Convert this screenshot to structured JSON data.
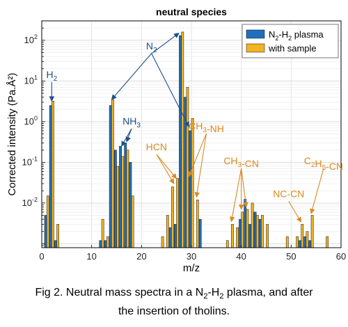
{
  "chart_data": {
    "type": "bar",
    "title": "neutral species",
    "xlabel": "m/z",
    "ylabel": "Corrected intensity (Pa.Å²)",
    "xlim": [
      0,
      60
    ],
    "ylim": [
      0.0008,
      300
    ],
    "yscale": "log",
    "grid": true,
    "x_ticks": [
      "0",
      "10",
      "20",
      "30",
      "40",
      "50",
      "60"
    ],
    "y_ticks": [
      {
        "base": "10",
        "exp": "-2",
        "value": 0.01
      },
      {
        "base": "10",
        "exp": "-1",
        "value": 0.1
      },
      {
        "base": "10",
        "exp": "0",
        "value": 1
      },
      {
        "base": "10",
        "exp": "1",
        "value": 10
      },
      {
        "base": "10",
        "exp": "2",
        "value": 100
      }
    ],
    "legend_position": "top-right",
    "series": [
      {
        "name": "N2-H2 plasma",
        "legend": {
          "main": "N",
          "sub1": "2",
          "mid": "-H",
          "sub2": "2",
          "tail": " plasma"
        },
        "color": "#1f6fbf",
        "x": [
          1,
          2,
          3,
          12,
          13,
          14,
          15,
          16,
          17,
          18,
          26,
          27,
          28,
          29,
          30,
          32,
          40,
          41,
          42,
          43,
          44,
          52,
          53,
          54
        ],
        "values": [
          0.005,
          2.5,
          0.0012,
          0.0012,
          0.0012,
          2.5,
          0.2,
          0.25,
          0.3,
          0.1,
          0.0025,
          0.003,
          130,
          4,
          0.6,
          0.004,
          0.004,
          0.0125,
          0.003,
          0.006,
          0.004,
          0.0012,
          0.0015,
          0.0012
        ]
      },
      {
        "name": "with sample",
        "color": "#f0b323",
        "x": [
          1,
          2,
          3,
          12,
          13,
          14,
          15,
          16,
          17,
          18,
          24,
          25,
          26,
          27,
          28,
          29,
          30,
          31,
          37,
          38,
          39,
          40,
          41,
          42,
          43,
          44,
          45,
          49,
          51,
          52,
          53,
          54,
          57
        ],
        "values": [
          0.015,
          3.2,
          0.003,
          0.004,
          0.0015,
          3.5,
          0.08,
          0.14,
          0.2,
          0.015,
          0.0015,
          0.005,
          0.025,
          0.04,
          160,
          7,
          1.2,
          0.012,
          0.0012,
          0.003,
          0.0025,
          0.006,
          0.007,
          0.01,
          0.005,
          0.005,
          0.003,
          0.0015,
          0.0015,
          0.003,
          0.002,
          0.005,
          0.0015
        ]
      }
    ],
    "annotations": [
      {
        "label": {
          "main": "N",
          "sub": "2",
          "tail": ""
        },
        "color": "#1a4f8c",
        "anchor_x": 22,
        "anchor_y": 60,
        "arrows": [
          {
            "x": 14,
            "y": 3.5
          },
          {
            "x": 27.5,
            "y": 150
          },
          {
            "x": 29.5,
            "y": 0.75
          }
        ]
      },
      {
        "label": {
          "main": "H",
          "sub": "2",
          "tail": ""
        },
        "color": "#1a4f8c",
        "anchor_x": 2,
        "anchor_y": 12,
        "arrows": [
          {
            "x": 2,
            "y": 3.2
          }
        ]
      },
      {
        "label": {
          "main": "NH",
          "sub": "3",
          "tail": ""
        },
        "color": "#1a4f8c",
        "anchor_x": 18,
        "anchor_y": 0.85,
        "arrows": [
          {
            "x": 16,
            "y": 0.25
          },
          {
            "x": 17,
            "y": 0.32
          }
        ]
      },
      {
        "label": {
          "main": "HCN",
          "sub": "",
          "tail": ""
        },
        "color": "#d98a20",
        "anchor_x": 23,
        "anchor_y": 0.2,
        "arrows": [
          {
            "x": 26.5,
            "y": 0.03
          },
          {
            "x": 27,
            "y": 0.04
          }
        ]
      },
      {
        "label": {
          "main": "CH",
          "sub": "3",
          "tail": "-NH"
        },
        "color": "#d98a20",
        "anchor_x": 33,
        "anchor_y": 0.65,
        "arrows": [
          {
            "x": 29.5,
            "y": 0.045
          },
          {
            "x": 31,
            "y": 0.014
          }
        ]
      },
      {
        "label": {
          "main": "CH",
          "sub": "3",
          "tail": "-CN"
        },
        "color": "#d98a20",
        "anchor_x": 40,
        "anchor_y": 0.09,
        "arrows": [
          {
            "x": 38,
            "y": 0.0035
          },
          {
            "x": 40,
            "y": 0.007
          },
          {
            "x": 41,
            "y": 0.008
          }
        ]
      },
      {
        "label": {
          "main": "NC-CN",
          "sub": "",
          "tail": ""
        },
        "color": "#d98a20",
        "anchor_x": 49.5,
        "anchor_y": 0.014,
        "arrows": [
          {
            "x": 52,
            "y": 0.0034
          }
        ]
      },
      {
        "label": {
          "main": "C",
          "sub": "2",
          "tail": "H",
          "sub2": "5",
          "tail2": "-CN"
        },
        "color": "#d98a20",
        "anchor_x": 56.5,
        "anchor_y": 0.09,
        "arrows": [
          {
            "x": 54,
            "y": 0.0055
          }
        ]
      }
    ]
  },
  "caption": {
    "line1_a": "Fig 2. Neutral mass spectra in a N",
    "line1_sub1": "2",
    "line1_b": "-H",
    "line1_sub2": "2",
    "line1_c": " plasma, and after",
    "line2": "the insertion of tholins."
  }
}
